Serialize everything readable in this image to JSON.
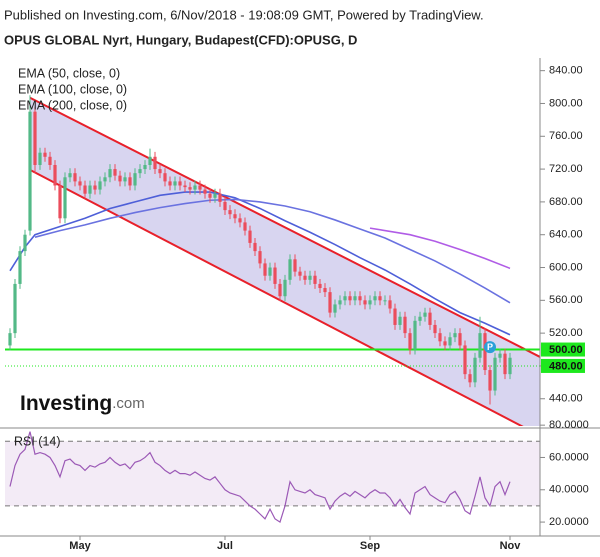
{
  "header": "Published on Investing.com, 6/Nov/2018 - 19:08:09 GMT, Powered by TradingView.",
  "logo": {
    "text": "Investing",
    "suffix": ".com"
  },
  "chart_data": {
    "type": "candlestick",
    "title": "OPUS GLOBAL Nyrt, Hungary, Budapest(CFD):OPUSG, D",
    "categories": [
      null,
      null,
      null,
      null,
      null,
      null,
      null,
      null,
      null,
      null,
      null,
      null,
      null,
      null,
      "May",
      null,
      null,
      null,
      null,
      null,
      null,
      null,
      null,
      null,
      null,
      null,
      null,
      null,
      null,
      null,
      null,
      null,
      null,
      null,
      null,
      null,
      null,
      null,
      null,
      null,
      null,
      null,
      null,
      "Jul",
      null,
      null,
      null,
      null,
      null,
      null,
      null,
      null,
      null,
      null,
      null,
      null,
      null,
      null,
      null,
      null,
      null,
      null,
      null,
      null,
      null,
      null,
      null,
      null,
      null,
      null,
      null,
      null,
      "Sep",
      null,
      null,
      null,
      null,
      null,
      null,
      null,
      null,
      null,
      null,
      null,
      null,
      null,
      null,
      null,
      null,
      null,
      null,
      null,
      null,
      null,
      null,
      null,
      null,
      null,
      null,
      null,
      "Nov"
    ],
    "open": [
      505,
      520,
      580,
      620,
      645,
      790,
      725,
      740,
      735,
      725,
      700,
      660,
      710,
      715,
      705,
      700,
      690,
      700,
      695,
      705,
      710,
      720,
      712,
      705,
      710,
      700,
      715,
      720,
      725,
      735,
      720,
      715,
      705,
      700,
      705,
      700,
      698,
      695,
      700,
      695,
      690,
      685,
      690,
      680,
      670,
      665,
      660,
      655,
      645,
      630,
      620,
      605,
      590,
      600,
      580,
      565,
      585,
      610,
      595,
      590,
      585,
      590,
      580,
      575,
      570,
      545,
      555,
      560,
      565,
      560,
      565,
      560,
      555,
      560,
      565,
      560,
      560,
      550,
      530,
      540,
      520,
      500,
      535,
      540,
      545,
      530,
      520,
      510,
      505,
      515,
      520,
      505,
      470,
      460,
      490,
      520,
      475,
      450,
      490,
      495,
      470
    ],
    "high": [
      526,
      586,
      626,
      646,
      810,
      796,
      746,
      746,
      741,
      731,
      706,
      716,
      721,
      721,
      711,
      706,
      706,
      706,
      711,
      716,
      726,
      726,
      718,
      716,
      716,
      721,
      726,
      731,
      745,
      741,
      726,
      721,
      711,
      711,
      711,
      706,
      704,
      706,
      706,
      701,
      696,
      696,
      696,
      686,
      676,
      671,
      666,
      661,
      651,
      636,
      626,
      611,
      606,
      606,
      586,
      591,
      616,
      616,
      601,
      596,
      596,
      596,
      586,
      581,
      576,
      561,
      566,
      571,
      571,
      571,
      571,
      566,
      566,
      571,
      571,
      566,
      566,
      556,
      546,
      546,
      526,
      541,
      546,
      551,
      551,
      536,
      526,
      516,
      521,
      526,
      526,
      511,
      476,
      496,
      540,
      526,
      481,
      496,
      501,
      501,
      496
    ],
    "low": [
      499,
      514,
      574,
      614,
      639,
      715,
      719,
      729,
      719,
      694,
      654,
      654,
      704,
      699,
      694,
      684,
      684,
      689,
      689,
      699,
      704,
      706,
      699,
      699,
      694,
      694,
      709,
      714,
      719,
      714,
      709,
      699,
      694,
      694,
      694,
      692,
      689,
      689,
      689,
      684,
      679,
      679,
      674,
      664,
      659,
      654,
      649,
      639,
      624,
      614,
      599,
      584,
      584,
      574,
      559,
      559,
      579,
      589,
      584,
      579,
      579,
      574,
      569,
      564,
      539,
      539,
      549,
      554,
      554,
      554,
      554,
      549,
      549,
      554,
      554,
      554,
      544,
      524,
      524,
      514,
      494,
      494,
      529,
      534,
      524,
      514,
      504,
      499,
      499,
      509,
      499,
      464,
      454,
      454,
      484,
      469,
      433,
      444,
      484,
      464,
      464
    ],
    "close": [
      520,
      580,
      620,
      640,
      790,
      725,
      740,
      735,
      725,
      700,
      660,
      710,
      715,
      705,
      700,
      690,
      700,
      695,
      705,
      710,
      720,
      712,
      705,
      710,
      700,
      715,
      720,
      725,
      735,
      720,
      715,
      705,
      700,
      705,
      700,
      698,
      695,
      700,
      695,
      690,
      685,
      690,
      680,
      670,
      665,
      660,
      655,
      645,
      630,
      620,
      605,
      590,
      600,
      580,
      565,
      585,
      610,
      595,
      590,
      585,
      590,
      580,
      575,
      570,
      545,
      555,
      560,
      565,
      560,
      565,
      560,
      555,
      560,
      565,
      560,
      560,
      550,
      530,
      540,
      520,
      500,
      535,
      540,
      545,
      530,
      520,
      510,
      505,
      515,
      520,
      505,
      470,
      460,
      490,
      520,
      475,
      450,
      490,
      495,
      470,
      490
    ],
    "up_color": "#53b987",
    "down_color": "#eb4d5c",
    "ylim": [
      408,
      853
    ],
    "yticks": [
      {
        "value": 440,
        "label": "440.00"
      },
      {
        "value": 480,
        "label": "480.00"
      },
      {
        "value": 520,
        "label": "520.00"
      },
      {
        "value": 560,
        "label": "560.00"
      },
      {
        "value": 600,
        "label": "600.00"
      },
      {
        "value": 640,
        "label": "640.00"
      },
      {
        "value": 680,
        "label": "680.00"
      },
      {
        "value": 720,
        "label": "720.00"
      },
      {
        "value": 760,
        "label": "760.00"
      },
      {
        "value": 800,
        "label": "800.00"
      },
      {
        "value": 840,
        "label": "840.00"
      }
    ],
    "grid": false,
    "indicators": [
      {
        "name": "EMA (50, close, 0)",
        "color": "#4e5fd8",
        "x": [
          0,
          3,
          5,
          10,
          15,
          20,
          25,
          30,
          35,
          40,
          45,
          50,
          55,
          60,
          65,
          70,
          75,
          80,
          85,
          90,
          95,
          100
        ],
        "values": [
          596,
          625,
          640,
          650,
          660,
          672,
          680,
          688,
          692,
          692,
          685,
          672,
          657,
          643,
          628,
          612,
          597,
          580,
          562,
          545,
          532,
          518
        ]
      },
      {
        "name": "EMA (100, close, 0)",
        "color": "#6a72e0",
        "x": [
          5,
          10,
          15,
          20,
          25,
          30,
          35,
          40,
          45,
          50,
          55,
          60,
          65,
          70,
          75,
          80,
          85,
          90,
          95,
          100
        ],
        "values": [
          637,
          645,
          652,
          660,
          667,
          673,
          678,
          682,
          683,
          680,
          675,
          668,
          658,
          647,
          636,
          622,
          608,
          592,
          575,
          557
        ]
      },
      {
        "name": "EMA (200, close, 0)",
        "color": "#b05ce6",
        "x": [
          72,
          80,
          85,
          90,
          95,
          100
        ],
        "values": [
          648,
          640,
          632,
          622,
          611,
          599
        ]
      }
    ],
    "channel": {
      "color": "#e8202a",
      "fill": "#b8b2e4",
      "upper": {
        "x": [
          4,
          106
        ],
        "values": [
          807,
          491
        ]
      },
      "lower": {
        "x": [
          4,
          106
        ],
        "values": [
          719,
          395
        ]
      }
    },
    "price_lines": [
      {
        "value": 500,
        "label": "500.00",
        "style": "solid",
        "color": "#1ee81e"
      },
      {
        "value": 480,
        "label": "480.00",
        "style": "dotted",
        "color": "#1ee81e"
      }
    ],
    "marker": {
      "label": "P",
      "x": 96,
      "value": 503,
      "color": "#2a9fd8"
    },
    "rsi": {
      "name": "RSI (14)",
      "color": "#9b59b6",
      "values": [
        42,
        55,
        62,
        65,
        76,
        62,
        63,
        62,
        60,
        55,
        48,
        58,
        59,
        56,
        55,
        52,
        55,
        54,
        56,
        57,
        60,
        57,
        55,
        56,
        53,
        57,
        58,
        60,
        63,
        57,
        55,
        52,
        50,
        52,
        50,
        50,
        49,
        51,
        49,
        47,
        46,
        48,
        44,
        40,
        38,
        37,
        36,
        33,
        30,
        28,
        25,
        22,
        28,
        22,
        20,
        30,
        45,
        40,
        39,
        38,
        40,
        37,
        36,
        35,
        28,
        33,
        36,
        38,
        36,
        39,
        37,
        35,
        38,
        40,
        38,
        38,
        35,
        30,
        34,
        29,
        25,
        38,
        40,
        42,
        37,
        35,
        33,
        32,
        37,
        39,
        34,
        27,
        25,
        36,
        48,
        35,
        30,
        42,
        45,
        37,
        45
      ],
      "ylim": [
        12,
        77
      ],
      "yticks": [
        {
          "value": 20,
          "label": "20.0000"
        },
        {
          "value": 40,
          "label": "40.0000"
        },
        {
          "value": 60,
          "label": "60.0000"
        },
        {
          "value": 80,
          "label": "80.0000"
        }
      ],
      "levels": [
        70,
        30
      ]
    }
  }
}
